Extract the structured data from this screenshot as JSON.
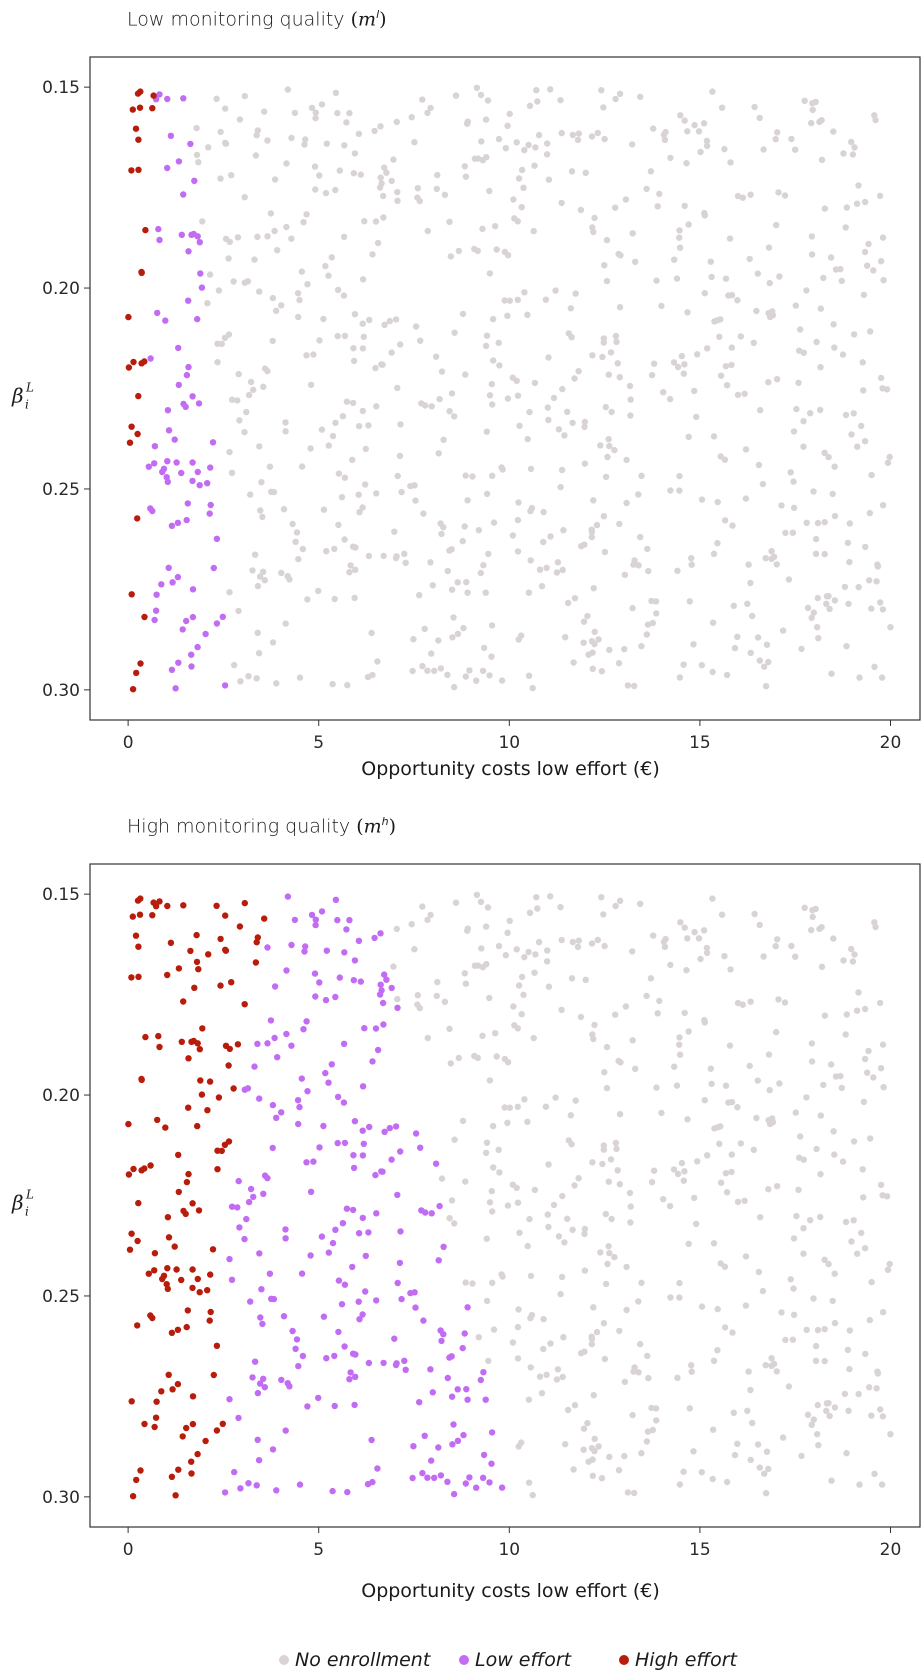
{
  "chart_data": [
    {
      "type": "scatter",
      "title_text": "Low monitoring quality",
      "title_symbol": "m",
      "title_superscript": "l",
      "xlabel": "Opportunity costs low effort (€)",
      "ylabel": "β",
      "ylabel_superscript": "L",
      "ylabel_subscript": "i",
      "xlim": [
        -1,
        20.8
      ],
      "ylim": [
        0.3075,
        0.1425
      ],
      "y_reversed": true,
      "xticks": [
        0,
        5,
        10,
        15,
        20
      ],
      "yticks": [
        0.15,
        0.2,
        0.25,
        0.3
      ],
      "ytick_labels": [
        "0.15",
        "0.20",
        "0.25",
        "0.30"
      ],
      "thresholds": [
        0.5,
        2.2
      ],
      "grid": false,
      "series": [
        {
          "name": "No enrollment",
          "color": "#d9d3d3"
        },
        {
          "name": "Low effort",
          "color": "#c16cf2"
        },
        {
          "name": "High effort",
          "color": "#b81c0a"
        }
      ]
    },
    {
      "type": "scatter",
      "title_text": "High monitoring quality",
      "title_symbol": "m",
      "title_superscript": "h",
      "xlabel": "Opportunity costs low effort (€)",
      "ylabel": "β",
      "ylabel_superscript": "L",
      "ylabel_subscript": "i",
      "xlim": [
        -1,
        20.8
      ],
      "ylim": [
        0.3075,
        0.1425
      ],
      "y_reversed": true,
      "xticks": [
        0,
        5,
        10,
        15,
        20
      ],
      "yticks": [
        0.15,
        0.2,
        0.25,
        0.3
      ],
      "ytick_labels": [
        "0.15",
        "0.20",
        "0.25",
        "0.30"
      ],
      "thresholds": [
        2.5,
        8.5
      ],
      "grid": false,
      "series": [
        {
          "name": "No enrollment",
          "color": "#d9d3d3"
        },
        {
          "name": "Low effort",
          "color": "#c16cf2"
        },
        {
          "name": "High effort",
          "color": "#b81c0a"
        }
      ]
    }
  ],
  "legend": {
    "items": [
      {
        "label": "No enrollment",
        "color": "#d9d3d3"
      },
      {
        "label": "Low effort",
        "color": "#c16cf2"
      },
      {
        "label": "High effort",
        "color": "#b81c0a"
      }
    ]
  }
}
